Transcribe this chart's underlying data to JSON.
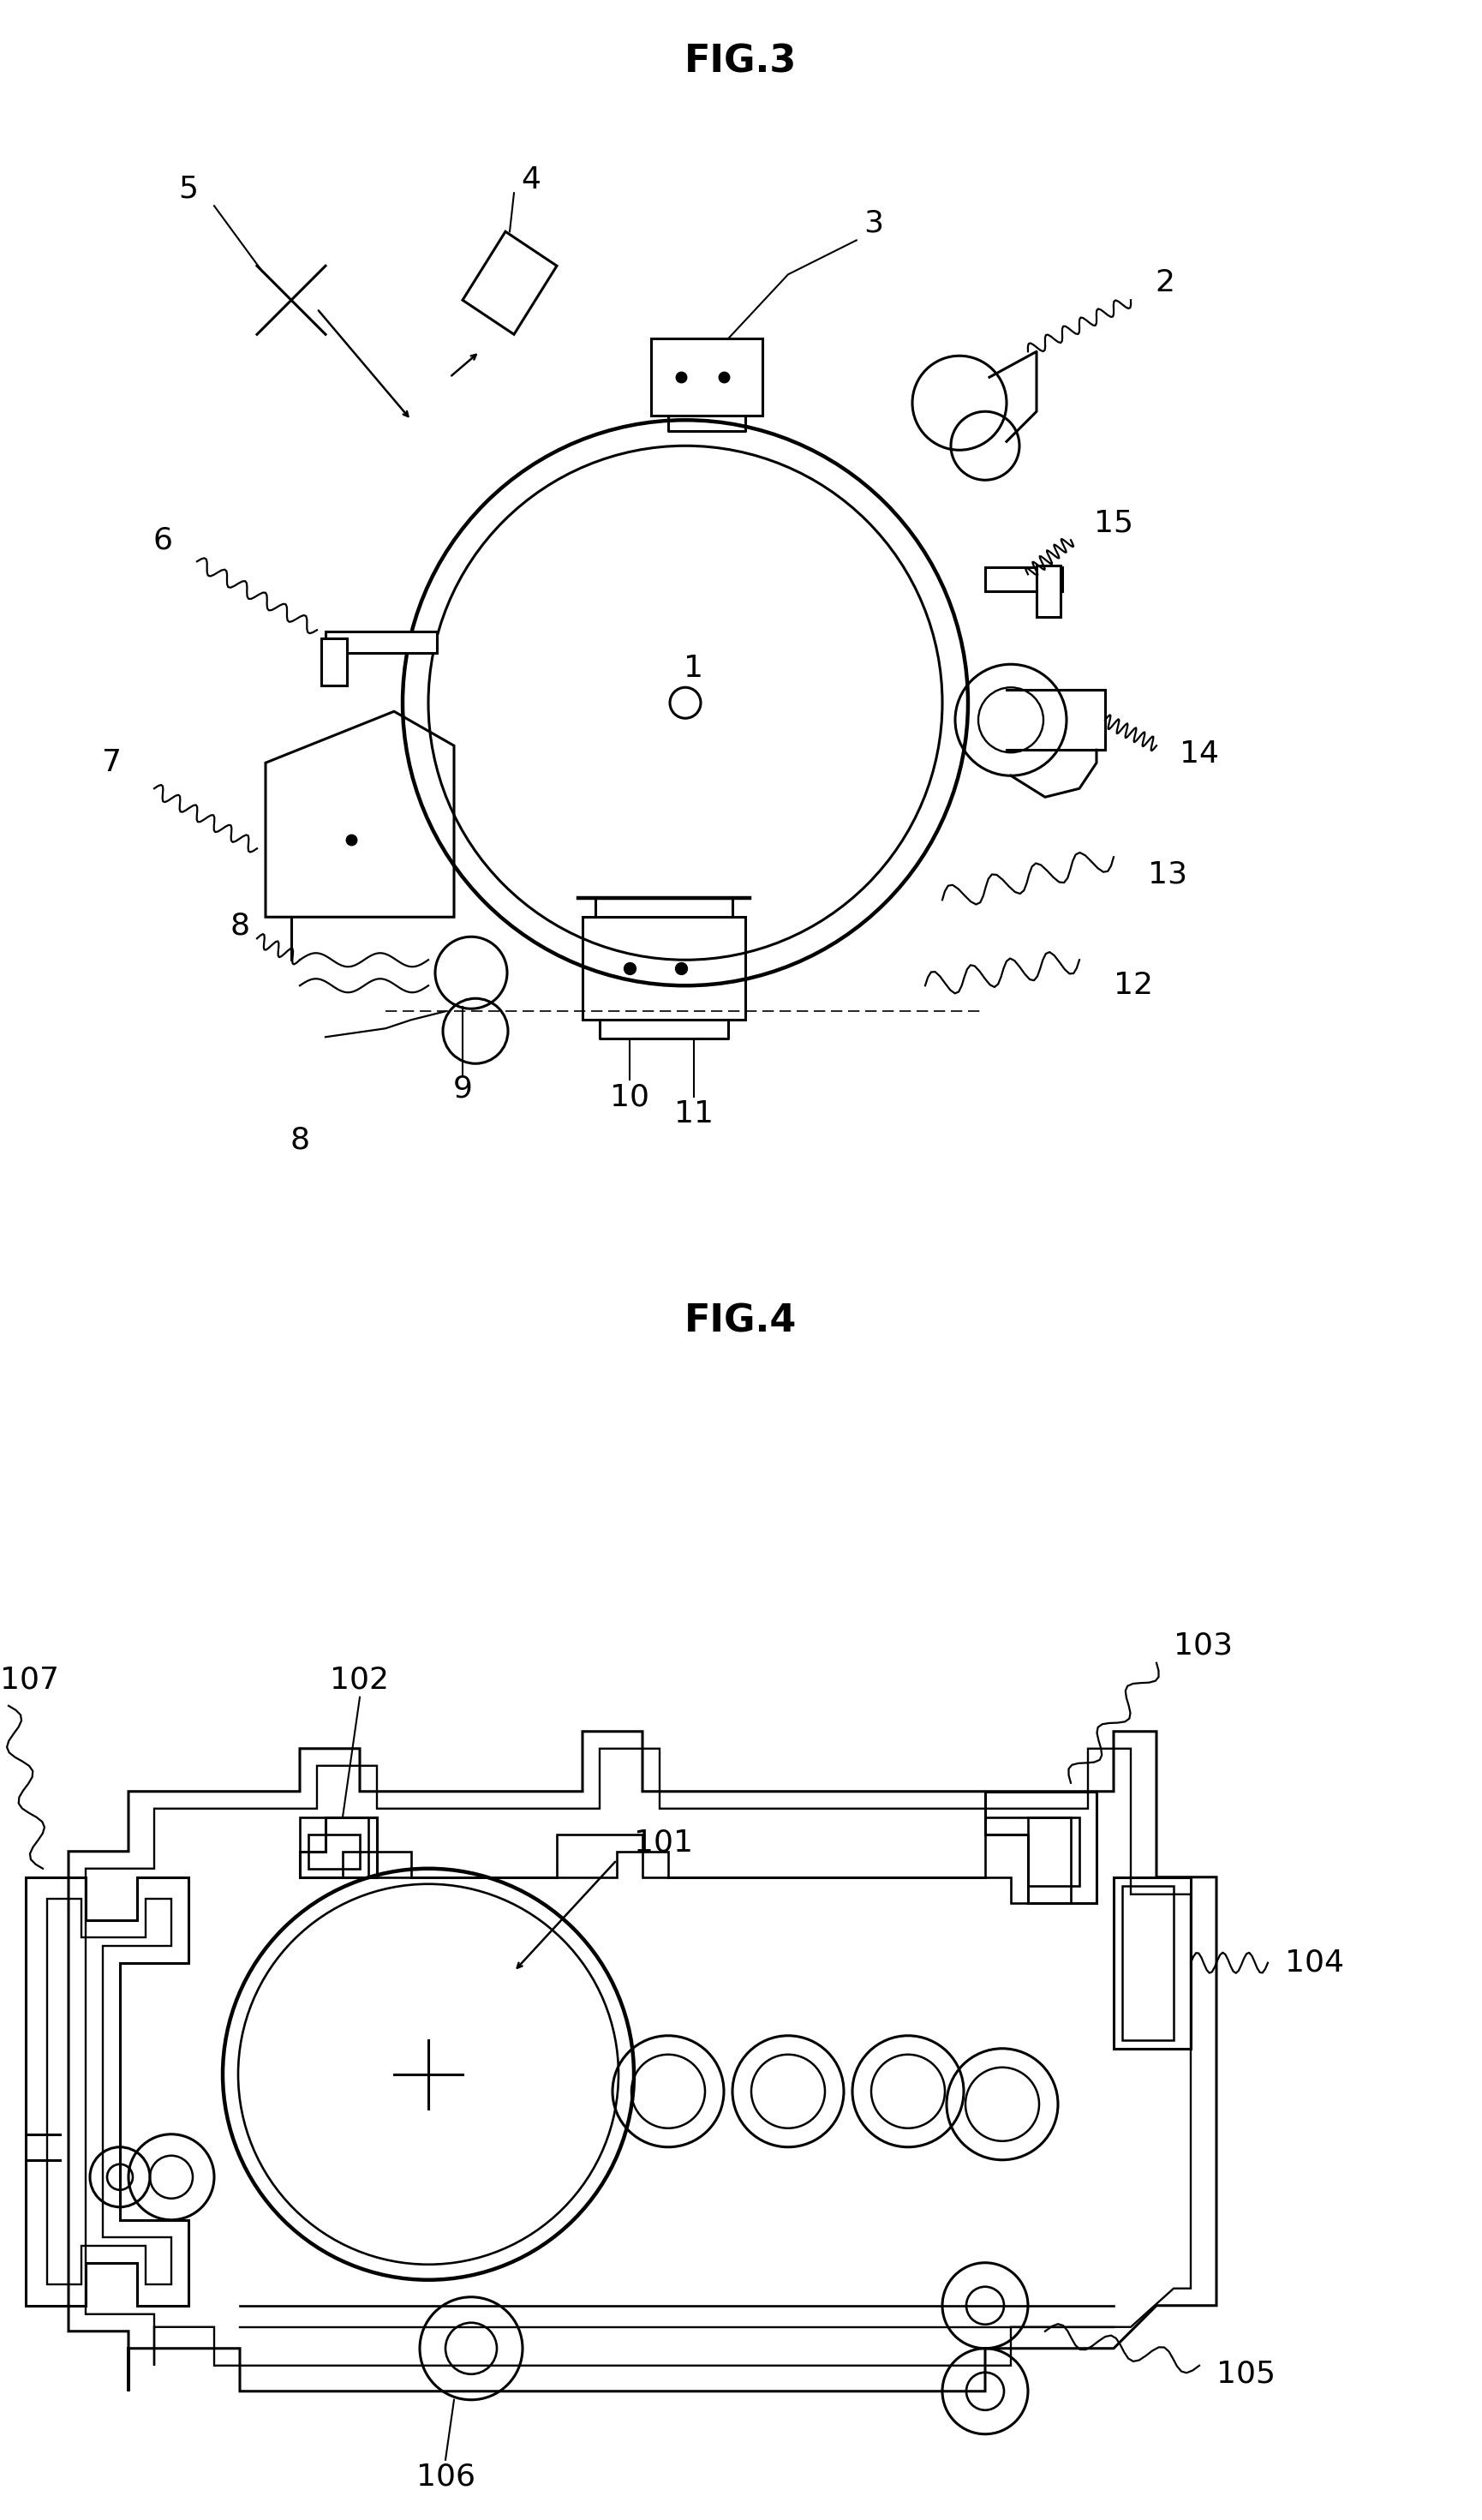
{
  "fig3_title": "FIG.3",
  "fig4_title": "FIG.4",
  "bg_color": "#ffffff",
  "line_color": "#000000",
  "title_fontsize": 32,
  "label_fontsize": 24
}
